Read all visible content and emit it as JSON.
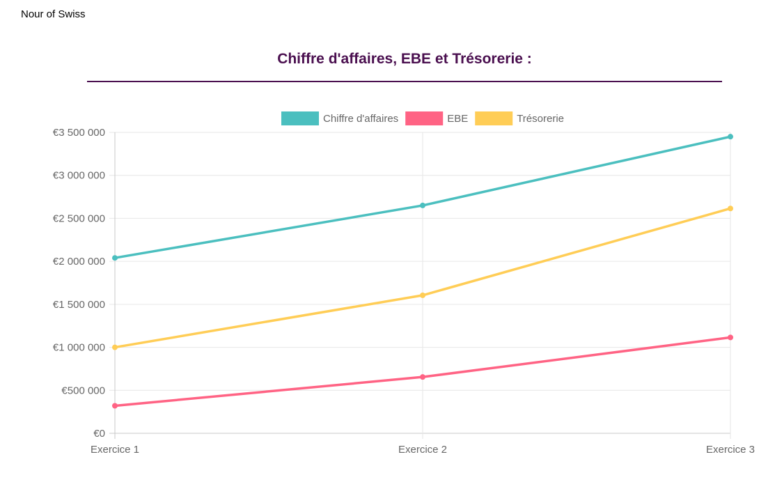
{
  "header": {
    "company": "Nour of Swiss"
  },
  "chart_data": {
    "type": "line",
    "title": "Chiffre d'affaires, EBE et Trésorerie :",
    "categories": [
      "Exercice 1",
      "Exercice 2",
      "Exercice 3"
    ],
    "series": [
      {
        "name": "Chiffre d'affaires",
        "color": "#4bbfbf",
        "values": [
          2040000,
          2650000,
          3450000
        ]
      },
      {
        "name": "EBE",
        "color": "#ff6384",
        "values": [
          320000,
          655000,
          1115000
        ]
      },
      {
        "name": "Trésorerie",
        "color": "#ffcd56",
        "values": [
          1000000,
          1605000,
          2615000
        ]
      }
    ],
    "ylim": [
      0,
      3500000
    ],
    "yticks": [
      0,
      500000,
      1000000,
      1500000,
      2000000,
      2500000,
      3000000,
      3500000
    ],
    "ytick_labels": [
      "€0",
      "€500 000",
      "€1 000 000",
      "€1 500 000",
      "€2 000 000",
      "€2 500 000",
      "€3 000 000",
      "€3 500 000"
    ],
    "grid": true,
    "legend_position": "top"
  }
}
